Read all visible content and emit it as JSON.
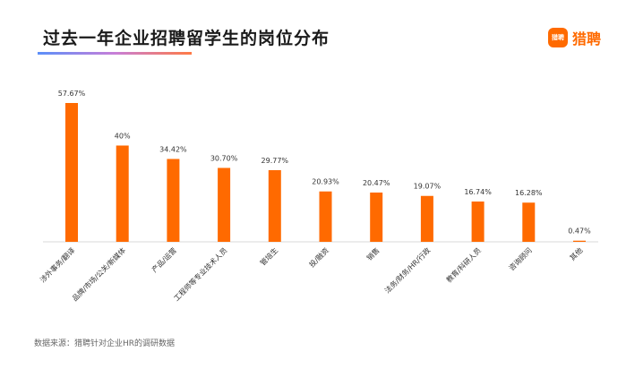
{
  "header": {
    "title": "过去一年企业招聘留学生的岗位分布",
    "logo_text": "猎聘",
    "logo_badge": "猎聘"
  },
  "footer": {
    "source": "数据来源：猎聘针对企业HR的调研数据"
  },
  "colors": {
    "bar": "#ff6a00",
    "accent": "#ff6a00"
  },
  "chart_data": {
    "type": "bar",
    "title": "过去一年企业招聘留学生的岗位分布",
    "xlabel": "",
    "ylabel": "",
    "ylim": [
      0,
      60
    ],
    "grid": false,
    "categories": [
      "涉外事务/翻译",
      "品牌/市场/公关/新媒体",
      "产品/运营",
      "工程师等专业技术人员",
      "管培生",
      "投/融资",
      "销售",
      "法务/财务/HR/行政",
      "教育/科研人员",
      "咨询顾问",
      "其他"
    ],
    "values": [
      57.67,
      40,
      34.42,
      30.7,
      29.77,
      20.93,
      20.47,
      19.07,
      16.74,
      16.28,
      0.47
    ],
    "value_labels": [
      "57.67%",
      "40%",
      "34.42%",
      "30.70%",
      "29.77%",
      "20.93%",
      "20.47%",
      "19.07%",
      "16.74%",
      "16.28%",
      "0.47%"
    ]
  }
}
